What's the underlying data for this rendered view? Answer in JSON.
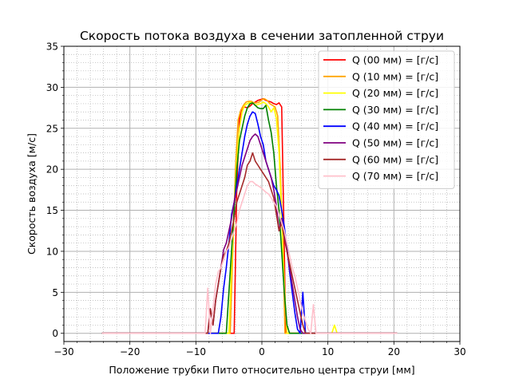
{
  "chart_data": {
    "type": "line",
    "title": "Скорость потока воздуха в сечении затопленной струи",
    "xlabel": "Положение трубки Пито относительно центра струи [мм]",
    "ylabel": "Скорость воздуха [м/с]",
    "xlim": [
      -30,
      30
    ],
    "ylim": [
      -1,
      35
    ],
    "xticks": [
      -30,
      -20,
      -10,
      0,
      10,
      20,
      30
    ],
    "xtick_labels": [
      "−30",
      "−20",
      "−10",
      "0",
      "10",
      "20",
      "30"
    ],
    "yticks": [
      0,
      5,
      10,
      15,
      20,
      25,
      30,
      35
    ],
    "ytick_labels": [
      "0",
      "5",
      "10",
      "15",
      "20",
      "25",
      "30",
      "35"
    ],
    "grid": "major and minor",
    "legend": "top-right",
    "series": [
      {
        "name": "Q (00 мм) = [г/с]",
        "color": "#ff0000",
        "points": [
          [
            -24.2,
            0
          ],
          [
            -4.2,
            0
          ],
          [
            -3.8,
            18
          ],
          [
            -3.4,
            26
          ],
          [
            -3,
            27.5
          ],
          [
            -2.6,
            27.6
          ],
          [
            -2.2,
            27.5
          ],
          [
            -1.8,
            27.7
          ],
          [
            -1.4,
            28.0
          ],
          [
            -1,
            28.2
          ],
          [
            -0.6,
            28.4
          ],
          [
            -0.2,
            28.5
          ],
          [
            0.2,
            28.6
          ],
          [
            0.6,
            28.4
          ],
          [
            1,
            28.3
          ],
          [
            1.4,
            28.2
          ],
          [
            1.8,
            28.0
          ],
          [
            2.2,
            27.9
          ],
          [
            2.6,
            28.1
          ],
          [
            3,
            27.6
          ],
          [
            3.4,
            10
          ],
          [
            3.6,
            0
          ],
          [
            20.5,
            0
          ]
        ]
      },
      {
        "name": "Q (10 мм) = [г/с]",
        "color": "#ffa500",
        "points": [
          [
            -24.2,
            0
          ],
          [
            -4.8,
            0
          ],
          [
            -4.4,
            10
          ],
          [
            -4,
            20
          ],
          [
            -3.6,
            26
          ],
          [
            -3.2,
            27.2
          ],
          [
            -2.8,
            27.8
          ],
          [
            -2.4,
            28.2
          ],
          [
            -2,
            28.3
          ],
          [
            -1.6,
            28.3
          ],
          [
            -1.2,
            28.1
          ],
          [
            -0.8,
            28.1
          ],
          [
            -0.4,
            28.2
          ],
          [
            0,
            28.5
          ],
          [
            0.4,
            28.6
          ],
          [
            0.8,
            28.4
          ],
          [
            1.2,
            28.0
          ],
          [
            1.6,
            27.8
          ],
          [
            2,
            27.6
          ],
          [
            2.4,
            26.5
          ],
          [
            2.8,
            20
          ],
          [
            3.2,
            10
          ],
          [
            3.5,
            0
          ],
          [
            20.5,
            0
          ]
        ]
      },
      {
        "name": "Q (20 мм) = [г/с]",
        "color": "#ffff00",
        "points": [
          [
            -24.2,
            0
          ],
          [
            -5,
            0
          ],
          [
            -4.6,
            8
          ],
          [
            -4.2,
            15
          ],
          [
            -3.8,
            21
          ],
          [
            -3.4,
            25
          ],
          [
            -3,
            27
          ],
          [
            -2.6,
            27.8
          ],
          [
            -2.2,
            28.0
          ],
          [
            -1.8,
            28.2
          ],
          [
            -1.4,
            28.1
          ],
          [
            -1,
            27.8
          ],
          [
            -0.6,
            27.9
          ],
          [
            -0.2,
            28.0
          ],
          [
            0.2,
            28.2
          ],
          [
            0.6,
            28.0
          ],
          [
            1,
            27.6
          ],
          [
            1.4,
            27.0
          ],
          [
            1.8,
            27.5
          ],
          [
            2.2,
            26.2
          ],
          [
            2.6,
            22
          ],
          [
            3,
            14
          ],
          [
            3.4,
            6
          ],
          [
            3.8,
            0
          ],
          [
            10.6,
            0
          ],
          [
            11,
            1
          ],
          [
            11.4,
            0
          ],
          [
            20.5,
            0
          ]
        ]
      },
      {
        "name": "Q (30 мм) = [г/с]",
        "color": "#008000",
        "points": [
          [
            -24.2,
            0
          ],
          [
            -5.4,
            0
          ],
          [
            -5,
            5
          ],
          [
            -4.6,
            10
          ],
          [
            -4.2,
            15
          ],
          [
            -3.8,
            20
          ],
          [
            -3.4,
            23.5
          ],
          [
            -3,
            25
          ],
          [
            -2.6,
            26.5
          ],
          [
            -2.2,
            27.5
          ],
          [
            -1.8,
            28.0
          ],
          [
            -1.4,
            28.1
          ],
          [
            -1,
            27.8
          ],
          [
            -0.6,
            27.5
          ],
          [
            -0.2,
            27.4
          ],
          [
            0.2,
            27.4
          ],
          [
            0.6,
            27.8
          ],
          [
            1,
            26
          ],
          [
            1.4,
            24.5
          ],
          [
            1.8,
            22
          ],
          [
            2.2,
            18
          ],
          [
            2.6,
            15
          ],
          [
            3,
            10
          ],
          [
            3.4,
            5
          ],
          [
            3.8,
            1
          ],
          [
            4.2,
            0
          ],
          [
            20.5,
            0
          ]
        ]
      },
      {
        "name": "Q (40 мм) = [г/с]",
        "color": "#0000ff",
        "points": [
          [
            -24.2,
            0
          ],
          [
            -6.6,
            0
          ],
          [
            -6.2,
            2
          ],
          [
            -5.8,
            5.5
          ],
          [
            -5.4,
            8
          ],
          [
            -5,
            11
          ],
          [
            -4.6,
            14.5
          ],
          [
            -4.2,
            16
          ],
          [
            -3.8,
            18
          ],
          [
            -3.4,
            20
          ],
          [
            -3,
            22
          ],
          [
            -2.6,
            24
          ],
          [
            -2.2,
            25.5
          ],
          [
            -1.8,
            26.5
          ],
          [
            -1.4,
            27.0
          ],
          [
            -1,
            26.8
          ],
          [
            -0.6,
            25.5
          ],
          [
            -0.2,
            24
          ],
          [
            0.2,
            23
          ],
          [
            0.6,
            21
          ],
          [
            1,
            20
          ],
          [
            1.4,
            19
          ],
          [
            1.8,
            18
          ],
          [
            2.2,
            17.5
          ],
          [
            2.6,
            16.8
          ],
          [
            3,
            15
          ],
          [
            3.4,
            13
          ],
          [
            3.8,
            10.5
          ],
          [
            4.2,
            7.5
          ],
          [
            4.6,
            5
          ],
          [
            5,
            2.5
          ],
          [
            5.4,
            0.5
          ],
          [
            5.8,
            0
          ],
          [
            6.2,
            5
          ],
          [
            6.6,
            0
          ],
          [
            20.5,
            0
          ]
        ]
      },
      {
        "name": "Q (50 мм) = [г/с]",
        "color": "#800080",
        "points": [
          [
            -24.2,
            0
          ],
          [
            -8.6,
            0
          ],
          [
            -8.2,
            0
          ],
          [
            -7.8,
            3
          ],
          [
            -7.4,
            1
          ],
          [
            -7,
            4
          ],
          [
            -6.6,
            6
          ],
          [
            -6.2,
            8
          ],
          [
            -5.8,
            10.2
          ],
          [
            -5.4,
            11
          ],
          [
            -5,
            12.5
          ],
          [
            -4.6,
            14
          ],
          [
            -4.2,
            16
          ],
          [
            -3.8,
            17.5
          ],
          [
            -3.4,
            19
          ],
          [
            -3,
            20.5
          ],
          [
            -2.6,
            21.5
          ],
          [
            -2.2,
            22.5
          ],
          [
            -1.8,
            23.5
          ],
          [
            -1.4,
            24
          ],
          [
            -1,
            24.3
          ],
          [
            -0.6,
            24.0
          ],
          [
            -0.2,
            23.0
          ],
          [
            0.2,
            22.0
          ],
          [
            0.6,
            21.0
          ],
          [
            1,
            20.0
          ],
          [
            1.4,
            19.0
          ],
          [
            1.8,
            17.5
          ],
          [
            2.2,
            15.5
          ],
          [
            2.6,
            12.5
          ],
          [
            3,
            14
          ],
          [
            3.4,
            12
          ],
          [
            3.8,
            10
          ],
          [
            4.2,
            8
          ],
          [
            4.6,
            6
          ],
          [
            5,
            4
          ],
          [
            5.4,
            2
          ],
          [
            5.8,
            0.5
          ],
          [
            6.2,
            0
          ],
          [
            20.5,
            0
          ]
        ]
      },
      {
        "name": "Q (60 мм) = [г/с]",
        "color": "#a52a2a",
        "points": [
          [
            -24.2,
            0
          ],
          [
            -8.6,
            0
          ],
          [
            -8.2,
            0
          ],
          [
            -7.8,
            3
          ],
          [
            -7.4,
            1
          ],
          [
            -7,
            4
          ],
          [
            -6.6,
            6
          ],
          [
            -6.2,
            8
          ],
          [
            -5.8,
            9.5
          ],
          [
            -5.4,
            10
          ],
          [
            -5,
            11
          ],
          [
            -4.6,
            12.5
          ],
          [
            -4.2,
            14
          ],
          [
            -3.8,
            16
          ],
          [
            -3.4,
            17
          ],
          [
            -3,
            18
          ],
          [
            -2.6,
            19
          ],
          [
            -2.2,
            20.5
          ],
          [
            -1.8,
            21
          ],
          [
            -1.4,
            22
          ],
          [
            -1,
            21
          ],
          [
            -0.6,
            20.5
          ],
          [
            -0.2,
            20
          ],
          [
            0.2,
            19.5
          ],
          [
            0.6,
            19
          ],
          [
            1,
            18.5
          ],
          [
            1.4,
            17.5
          ],
          [
            1.8,
            16.5
          ],
          [
            2.2,
            14.5
          ],
          [
            2.6,
            12.5
          ],
          [
            3,
            13.5
          ],
          [
            3.4,
            11.5
          ],
          [
            3.8,
            10
          ],
          [
            4.2,
            8.5
          ],
          [
            4.6,
            7
          ],
          [
            5,
            5.5
          ],
          [
            5.4,
            4
          ],
          [
            5.8,
            2.5
          ],
          [
            6.2,
            1
          ],
          [
            6.6,
            0
          ],
          [
            20.5,
            0
          ]
        ]
      },
      {
        "name": "Q (70 мм) = [г/с]",
        "color": "#ffc0cb",
        "points": [
          [
            -24.2,
            0
          ],
          [
            -8.6,
            0
          ],
          [
            -8.2,
            5.5
          ],
          [
            -7.8,
            0
          ],
          [
            -7.4,
            3
          ],
          [
            -7,
            6
          ],
          [
            -6.6,
            7.5
          ],
          [
            -6.2,
            8
          ],
          [
            -5.8,
            9
          ],
          [
            -5.4,
            10
          ],
          [
            -5,
            10.5
          ],
          [
            -4.6,
            11.5
          ],
          [
            -4.2,
            12.5
          ],
          [
            -3.8,
            13.5
          ],
          [
            -3.4,
            15
          ],
          [
            -3,
            16
          ],
          [
            -2.6,
            17
          ],
          [
            -2.2,
            18
          ],
          [
            -1.8,
            18.5
          ],
          [
            -1.4,
            18.5
          ],
          [
            -1,
            18.2
          ],
          [
            -0.6,
            18
          ],
          [
            -0.2,
            17.8
          ],
          [
            0.2,
            17.5
          ],
          [
            0.6,
            17.2
          ],
          [
            1,
            17
          ],
          [
            1.4,
            16.5
          ],
          [
            1.8,
            16
          ],
          [
            2.2,
            15.5
          ],
          [
            2.6,
            14.5
          ],
          [
            3,
            13.5
          ],
          [
            3.4,
            12.5
          ],
          [
            3.8,
            11
          ],
          [
            4.2,
            9.5
          ],
          [
            4.6,
            8
          ],
          [
            5,
            7
          ],
          [
            5.4,
            5.5
          ],
          [
            5.8,
            4
          ],
          [
            6.2,
            2.5
          ],
          [
            6.6,
            1.5
          ],
          [
            7,
            0.5
          ],
          [
            7.4,
            0
          ],
          [
            7.8,
            3.5
          ],
          [
            8.2,
            0
          ],
          [
            20.5,
            0
          ]
        ]
      }
    ]
  }
}
